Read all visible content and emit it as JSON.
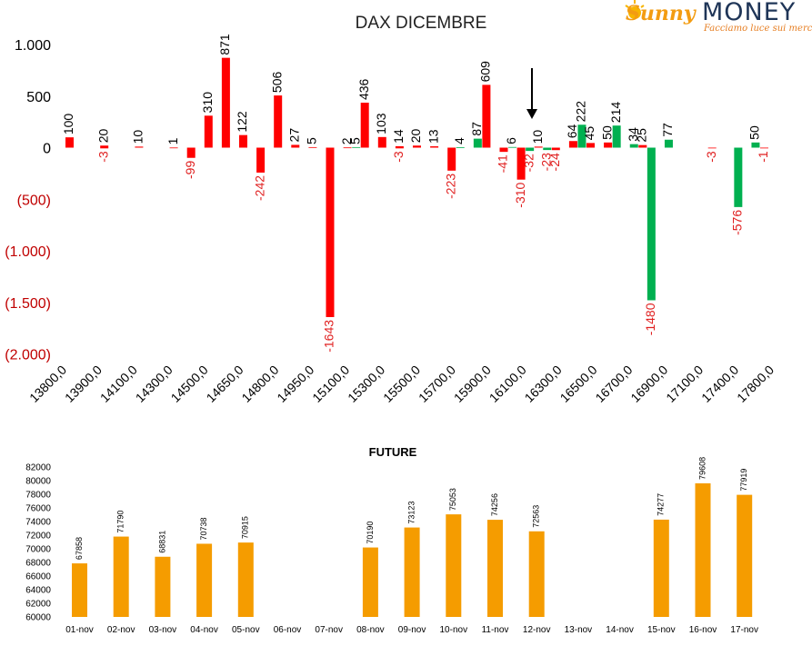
{
  "brand": {
    "part1": "Sunny",
    "part2": "MONEY",
    "tagline": "Facciamo luce sui mercati"
  },
  "colors": {
    "red": "#ff0000",
    "green": "#00b050",
    "orange": "#f59c00",
    "negative_label": "#e02020"
  },
  "chart_data": [
    {
      "type": "bar",
      "title": "DAX DICEMBRE",
      "xlabel": "",
      "ylabel": "",
      "ylim": [
        -2000,
        1000
      ],
      "yticks": [
        {
          "value": 1000,
          "label": "1.000"
        },
        {
          "value": 500,
          "label": "500"
        },
        {
          "value": 0,
          "label": "0"
        },
        {
          "value": -500,
          "label": "(500)"
        },
        {
          "value": -1000,
          "label": "(1.000)"
        },
        {
          "value": -1500,
          "label": "(1.500)"
        },
        {
          "value": -2000,
          "label": "(2.000)"
        }
      ],
      "xtick_labels": [
        "13800,0",
        "13900,0",
        "14100,0",
        "14300,0",
        "14500,0",
        "14650,0",
        "14800,0",
        "14950,0",
        "15100,0",
        "15300,0",
        "15500,0",
        "15700,0",
        "15900,0",
        "16100,0",
        "16300,0",
        "16500,0",
        "16700,0",
        "16900,0",
        "17100,0",
        "17400,0",
        "17800,0"
      ],
      "grid": false,
      "annotations": [
        {
          "type": "arrow",
          "pointing": "down",
          "near_strike": "16100"
        }
      ],
      "series": [
        {
          "color": "red",
          "points": [
            {
              "slot": 0,
              "value": 100
            },
            {
              "slot": 2,
              "value": 20
            },
            {
              "slot": 2,
              "value": -3
            },
            {
              "slot": 4,
              "value": 10
            },
            {
              "slot": 6,
              "value": 1
            },
            {
              "slot": 7,
              "value": -99
            },
            {
              "slot": 8,
              "value": 310
            },
            {
              "slot": 9,
              "value": 871
            },
            {
              "slot": 10,
              "value": 122
            },
            {
              "slot": 11,
              "value": -242
            },
            {
              "slot": 12,
              "value": 506
            },
            {
              "slot": 13,
              "value": 27
            },
            {
              "slot": 14,
              "value": 5
            },
            {
              "slot": 15,
              "value": -1643
            },
            {
              "slot": 16,
              "value": 2
            },
            {
              "slot": 17,
              "value": 436
            },
            {
              "slot": 18,
              "value": 103
            },
            {
              "slot": 19,
              "value": 14
            },
            {
              "slot": 19,
              "value": -3
            },
            {
              "slot": 20,
              "value": 20
            },
            {
              "slot": 21,
              "value": 13
            },
            {
              "slot": 22,
              "value": -223
            },
            {
              "slot": 24,
              "value": 609
            },
            {
              "slot": 25,
              "value": -41
            },
            {
              "slot": 26,
              "value": -310
            },
            {
              "slot": 27,
              "value": 10
            },
            {
              "slot": 28,
              "value": -24
            },
            {
              "slot": 29,
              "value": 64
            },
            {
              "slot": 30,
              "value": 45
            },
            {
              "slot": 31,
              "value": 50
            },
            {
              "slot": 33,
              "value": 25
            },
            {
              "slot": 37,
              "value": -3
            },
            {
              "slot": 40,
              "value": -1
            }
          ]
        },
        {
          "color": "green",
          "points": [
            {
              "slot": 16.5,
              "value": 5
            },
            {
              "slot": 22.5,
              "value": 4
            },
            {
              "slot": 23.5,
              "value": 87
            },
            {
              "slot": 25.5,
              "value": 6
            },
            {
              "slot": 26.5,
              "value": -32
            },
            {
              "slot": 27.5,
              "value": -23
            },
            {
              "slot": 29.5,
              "value": 222
            },
            {
              "slot": 31.5,
              "value": 214
            },
            {
              "slot": 32.5,
              "value": 34
            },
            {
              "slot": 33.5,
              "value": -1480
            },
            {
              "slot": 34.5,
              "value": 77
            },
            {
              "slot": 38.5,
              "value": -576
            },
            {
              "slot": 39.5,
              "value": 50
            }
          ]
        }
      ]
    },
    {
      "type": "bar",
      "title": "FUTURE",
      "xlabel": "",
      "ylabel": "",
      "ylim": [
        60000,
        82000
      ],
      "yticks": [
        60000,
        62000,
        64000,
        66000,
        68000,
        70000,
        72000,
        74000,
        76000,
        78000,
        80000,
        82000
      ],
      "categories": [
        "01-nov",
        "02-nov",
        "03-nov",
        "04-nov",
        "05-nov",
        "06-nov",
        "07-nov",
        "08-nov",
        "09-nov",
        "10-nov",
        "11-nov",
        "12-nov",
        "13-nov",
        "14-nov",
        "15-nov",
        "16-nov",
        "17-nov"
      ],
      "values": [
        67858,
        71790,
        68831,
        70738,
        70915,
        null,
        null,
        70190,
        73123,
        75053,
        74256,
        72563,
        null,
        null,
        74277,
        79608,
        77919
      ],
      "color": "orange",
      "grid": false
    }
  ]
}
